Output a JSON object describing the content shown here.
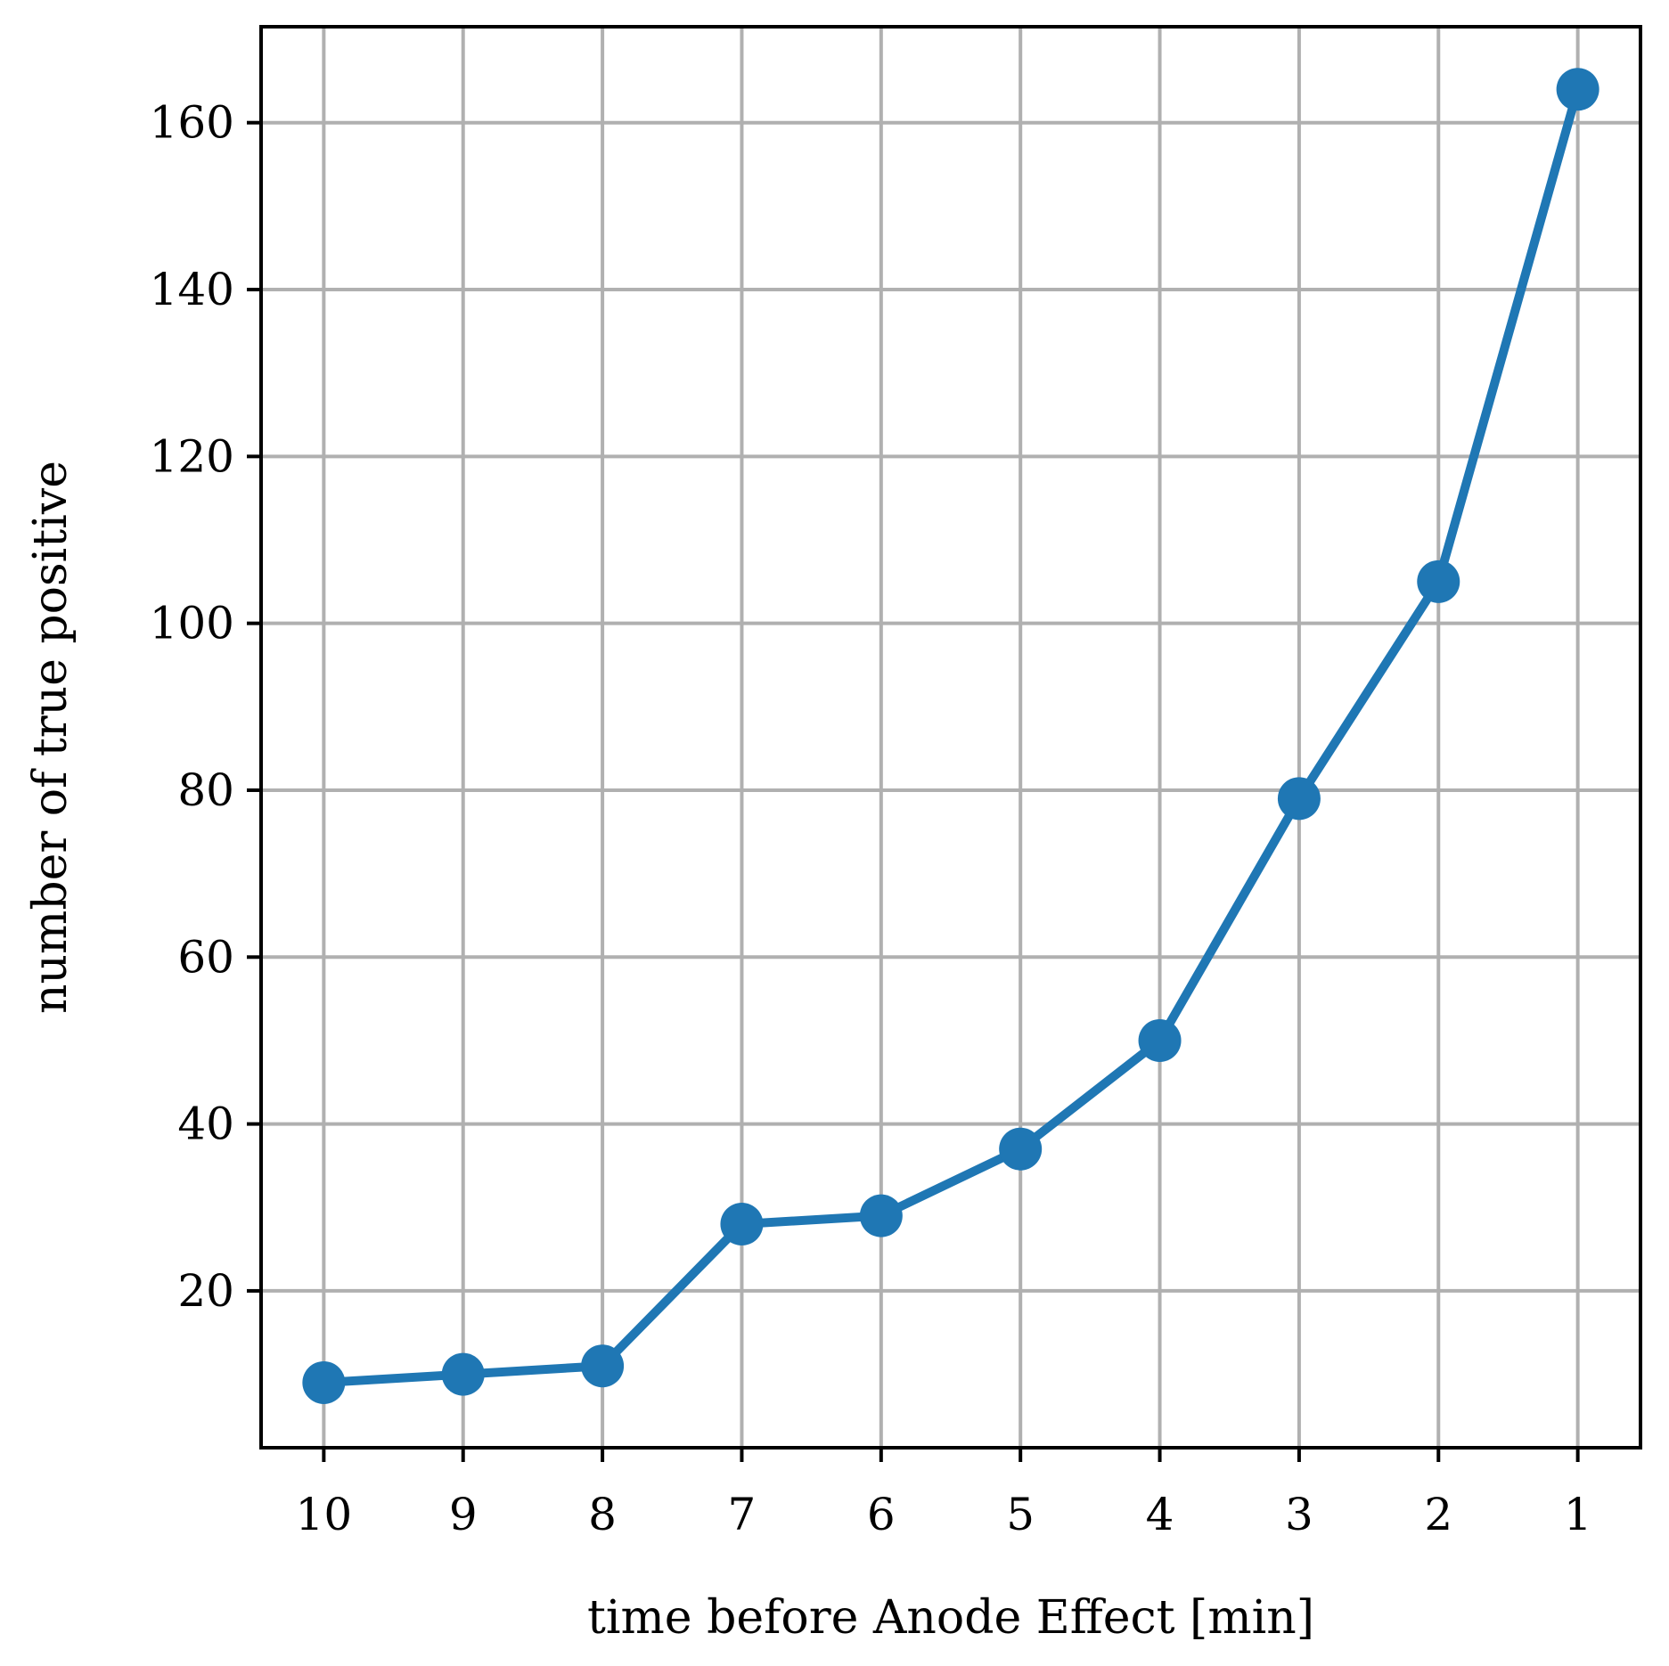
{
  "chart_data": {
    "type": "line",
    "title": "",
    "xlabel": "time before Anode Effect [min]",
    "ylabel": "number of true positive",
    "x": [
      10,
      9,
      8,
      7,
      6,
      5,
      4,
      3,
      2,
      1
    ],
    "x_ticks": [
      "10",
      "9",
      "8",
      "7",
      "6",
      "5",
      "4",
      "3",
      "2",
      "1"
    ],
    "xlim": [
      10.45,
      0.55
    ],
    "x_reversed": true,
    "y_ticks": [
      20,
      40,
      60,
      80,
      100,
      120,
      140,
      160
    ],
    "ylim": [
      1.2,
      171.5
    ],
    "series": [
      {
        "values": [
          9,
          10,
          11,
          28,
          29,
          37,
          50,
          79,
          105,
          164
        ],
        "color": "#1f77b4",
        "marker": "circle"
      }
    ],
    "grid": true,
    "grid_color": "#b0b0b0",
    "legend": false
  }
}
